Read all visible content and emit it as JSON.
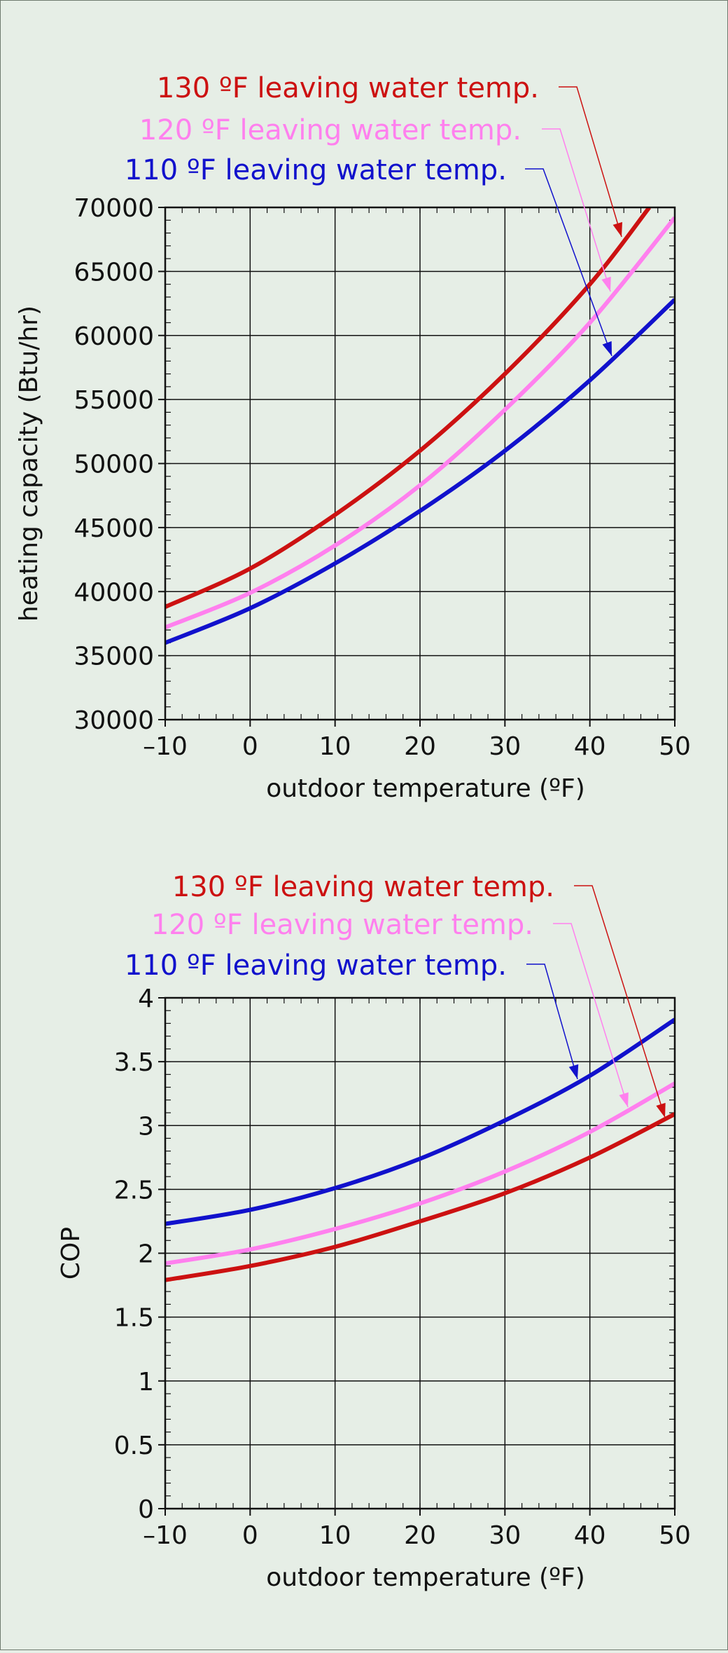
{
  "chart_data": [
    {
      "type": "line",
      "xlabel": "outdoor temperature (ºF)",
      "ylabel": "heating capacity (Btu/hr)",
      "xlim": [
        -10,
        50
      ],
      "ylim": [
        30000,
        70000
      ],
      "xticks": [
        -10,
        0,
        10,
        20,
        30,
        40,
        50
      ],
      "xtick_labels": [
        "–10",
        "0",
        "10",
        "20",
        "30",
        "40",
        "50"
      ],
      "yticks": [
        30000,
        35000,
        40000,
        45000,
        50000,
        55000,
        60000,
        65000,
        70000
      ],
      "ytick_labels": [
        "30000",
        "35000",
        "40000",
        "45000",
        "50000",
        "55000",
        "60000",
        "65000",
        "70000"
      ],
      "grid": true,
      "series": [
        {
          "name": "130 ºF leaving water temp.",
          "color": "#cc1111",
          "x": [
            -10,
            0,
            10,
            20,
            30,
            40,
            47
          ],
          "y": [
            38800,
            41800,
            46000,
            51000,
            57000,
            64000,
            70000
          ]
        },
        {
          "name": "120 ºF leaving water temp.",
          "color": "#ff80ee",
          "x": [
            -10,
            0,
            10,
            20,
            30,
            40,
            50
          ],
          "y": [
            37200,
            39900,
            43600,
            48300,
            54200,
            61000,
            69200
          ]
        },
        {
          "name": "110 ºF leaving water temp.",
          "color": "#1111cc",
          "x": [
            -10,
            0,
            10,
            20,
            30,
            40,
            50
          ],
          "y": [
            36000,
            38700,
            42200,
            46300,
            51000,
            56500,
            62800
          ]
        }
      ]
    },
    {
      "type": "line",
      "xlabel": "outdoor temperature (ºF)",
      "ylabel": "COP",
      "xlim": [
        -10,
        50
      ],
      "ylim": [
        0,
        4
      ],
      "xticks": [
        -10,
        0,
        10,
        20,
        30,
        40,
        50
      ],
      "xtick_labels": [
        "–10",
        "0",
        "10",
        "20",
        "30",
        "40",
        "50"
      ],
      "yticks": [
        0,
        0.5,
        1,
        1.5,
        2,
        2.5,
        3,
        3.5,
        4
      ],
      "ytick_labels": [
        "0",
        "0.5",
        "1",
        "1.5",
        "2",
        "2.5",
        "3",
        "3.5",
        "4"
      ],
      "grid": true,
      "series": [
        {
          "name": "130 ºF leaving water temp.",
          "color": "#cc1111",
          "x": [
            -10,
            0,
            10,
            20,
            30,
            40,
            50
          ],
          "y": [
            1.79,
            1.9,
            2.05,
            2.25,
            2.47,
            2.75,
            3.09
          ]
        },
        {
          "name": "120 ºF leaving water temp.",
          "color": "#ff80ee",
          "x": [
            -10,
            0,
            10,
            20,
            30,
            40,
            50
          ],
          "y": [
            1.92,
            2.03,
            2.19,
            2.39,
            2.64,
            2.95,
            3.33
          ]
        },
        {
          "name": "110 ºF leaving water temp.",
          "color": "#1111cc",
          "x": [
            -10,
            0,
            10,
            20,
            30,
            40,
            50
          ],
          "y": [
            2.23,
            2.34,
            2.51,
            2.74,
            3.04,
            3.39,
            3.83
          ]
        }
      ]
    }
  ]
}
